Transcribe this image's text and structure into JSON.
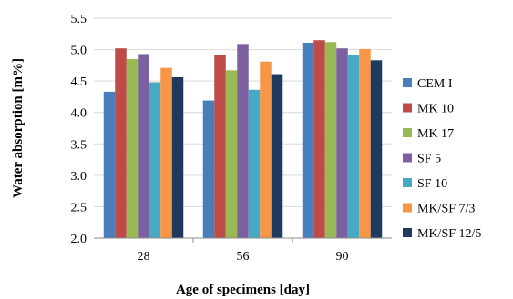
{
  "chart_data": {
    "type": "bar",
    "categories": [
      "28",
      "56",
      "90"
    ],
    "series": [
      {
        "name": "CEM I",
        "color": "#4A7EBB",
        "values": [
          4.33,
          4.19,
          5.11
        ]
      },
      {
        "name": "MK 10",
        "color": "#BE4B48",
        "values": [
          5.02,
          4.92,
          5.15
        ]
      },
      {
        "name": "MK 17",
        "color": "#98B954",
        "values": [
          4.85,
          4.67,
          5.12
        ]
      },
      {
        "name": "SF 5",
        "color": "#7D60A0",
        "values": [
          4.93,
          5.09,
          5.02
        ]
      },
      {
        "name": "SF 10",
        "color": "#46AAC5",
        "values": [
          4.48,
          4.36,
          4.91
        ]
      },
      {
        "name": "MK/SF 7/3",
        "color": "#F79646",
        "values": [
          4.71,
          4.81,
          5.01
        ]
      },
      {
        "name": "MK/SF 12/5",
        "color": "#1F3A5F",
        "values": [
          4.56,
          4.61,
          4.83
        ]
      }
    ],
    "title": "",
    "xlabel": "Age of specimens [day]",
    "ylabel": "Water absorption [m%]",
    "ylim": [
      2.0,
      5.5
    ],
    "yticks": [
      "2.0",
      "2.5",
      "3.0",
      "3.5",
      "4.0",
      "4.5",
      "5.0",
      "5.5"
    ],
    "grid": true,
    "legend": "right"
  }
}
